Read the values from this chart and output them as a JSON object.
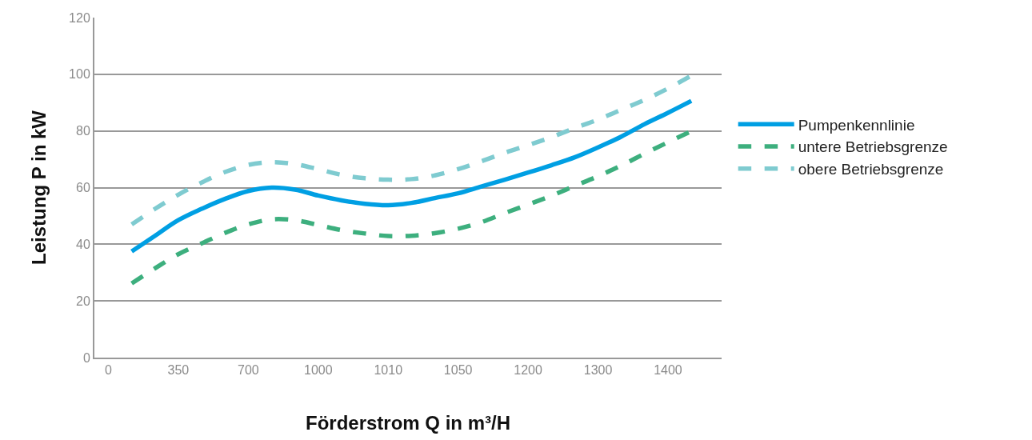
{
  "chart_data": {
    "type": "line",
    "xlabel": "Förderstrom Q in m³/H",
    "ylabel": "Leistung P in kW",
    "categories": [
      "0",
      null,
      null,
      "350",
      null,
      null,
      "700",
      null,
      null,
      "1000",
      null,
      null,
      "1010",
      null,
      null,
      "1050",
      null,
      null,
      "1200",
      null,
      null,
      "1300",
      null,
      null,
      "1400",
      null
    ],
    "ylim": [
      0,
      120
    ],
    "yticks": [
      0,
      20,
      40,
      60,
      80,
      100,
      120
    ],
    "grid": "y",
    "legend": "right",
    "marker": "none",
    "series": [
      {
        "name": "Pumpenkennlinie",
        "color": "#009fe3",
        "line_style": "solid",
        "values": [
          null,
          37.5,
          43,
          48.5,
          52.5,
          56,
          58.8,
          60,
          59.3,
          57.2,
          55.5,
          54.3,
          53.8,
          54.6,
          56.3,
          58,
          60.4,
          62.8,
          65.3,
          67.9,
          70.7,
          74.2,
          78,
          82.4,
          86.4,
          90.6
        ]
      },
      {
        "name": "untere Betriebsgrenze",
        "color": "#3daf7e",
        "line_style": "dashed",
        "values": [
          null,
          26.2,
          31.5,
          36.5,
          40.3,
          44,
          47,
          48.8,
          48.5,
          46.8,
          45,
          43.8,
          42.9,
          43,
          43.9,
          45.5,
          47.8,
          51,
          54,
          57.1,
          60.6,
          64,
          67.8,
          72,
          76,
          79.9
        ]
      },
      {
        "name": "obere Betriebsgrenze",
        "color": "#7fcbd0",
        "line_style": "dashed",
        "values": [
          null,
          47,
          52.5,
          57.5,
          61.8,
          65.5,
          68,
          69,
          68.3,
          66.5,
          64.5,
          63.3,
          62.8,
          63,
          64.3,
          66.5,
          69.3,
          72.3,
          75,
          77.8,
          81,
          84,
          87.5,
          91,
          95,
          99.5
        ]
      }
    ]
  }
}
